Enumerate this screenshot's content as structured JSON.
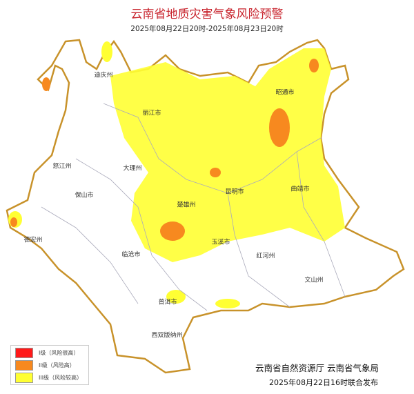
{
  "title": "云南省地质灾害气象风险预警",
  "period": "2025年08月22日20时-2025年08月23日20时",
  "colors": {
    "level1": "#ff1a1a",
    "level2": "#f7891f",
    "level3": "#ffff33",
    "border": "#c8922a",
    "title": "#c8232c"
  },
  "legend": [
    {
      "label": "I级（风险很高）",
      "color": "#ff1a1a"
    },
    {
      "label": "II级（风险高）",
      "color": "#f7891f"
    },
    {
      "label": "III级（风险较高）",
      "color": "#ffff33"
    }
  ],
  "regions": [
    "迪庆州",
    "丽江市",
    "怒江州",
    "大理州",
    "保山市",
    "德宏州",
    "临沧市",
    "普洱市",
    "西双版纳州",
    "楚雄州",
    "昆明市",
    "玉溪市",
    "红河州",
    "文山州",
    "曲靖市",
    "昭通市"
  ],
  "publisher": "云南省自然资源厅  云南省气象局",
  "publish_time": "2025年08月22日16时联合发布"
}
